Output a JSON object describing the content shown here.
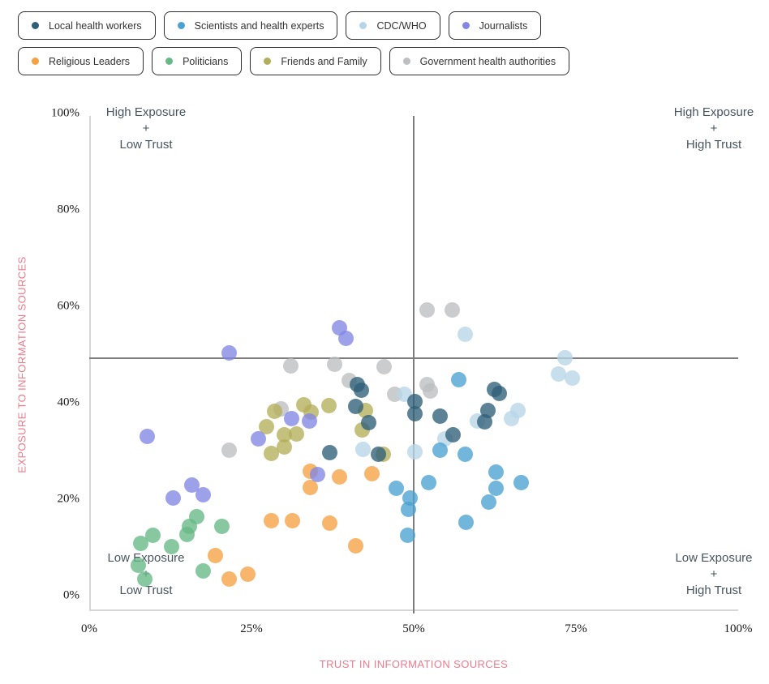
{
  "legend": {
    "rows": [
      [
        {
          "label": "Local health workers",
          "color": "#2e5f78"
        },
        {
          "label": "Scientists and health experts",
          "color": "#4aa2d1"
        },
        {
          "label": "CDC/WHO",
          "color": "#b7d5e8"
        },
        {
          "label": "Journalists",
          "color": "#8287e4"
        }
      ],
      [
        {
          "label": "Religious Leaders",
          "color": "#f5a142"
        },
        {
          "label": "Politicians",
          "color": "#67b886"
        },
        {
          "label": "Friends and Family",
          "color": "#b3ae59"
        },
        {
          "label": "Government health authorities",
          "color": "#bcbec0"
        }
      ]
    ]
  },
  "quadrants": {
    "top_left": {
      "line1": "High Exposure",
      "line2": "+",
      "line3": "Low Trust"
    },
    "top_right": {
      "line1": "High Exposure",
      "line2": "+",
      "line3": "High Trust"
    },
    "bottom_left": {
      "line1": "Low Exposure",
      "line2": "+",
      "line3": "Low Trust"
    },
    "bottom_right": {
      "line1": "Low Exposure",
      "line2": "+",
      "line3": "High Trust"
    }
  },
  "chart_data": {
    "type": "scatter",
    "xlabel": "TRUST IN INFORMATION SOURCES",
    "ylabel": "EXPOSURE TO INFORMATION SOURCES",
    "xlim": [
      0,
      100
    ],
    "ylim": [
      0,
      100
    ],
    "x_ticks": [
      {
        "value": 0,
        "label": "0%"
      },
      {
        "value": 25,
        "label": "25%"
      },
      {
        "value": 50,
        "label": "50%"
      },
      {
        "value": 75,
        "label": "75%"
      },
      {
        "value": 100,
        "label": "100%"
      }
    ],
    "y_ticks": [
      {
        "value": 0,
        "label": "0%"
      },
      {
        "value": 20,
        "label": "20%"
      },
      {
        "value": 40,
        "label": "40%"
      },
      {
        "value": 60,
        "label": "60%"
      },
      {
        "value": 80,
        "label": "80%"
      },
      {
        "value": 100,
        "label": "100%"
      }
    ],
    "grid": false,
    "legend_position": "top-left",
    "reference_lines": {
      "x": 50,
      "y": 49.3
    },
    "series": [
      {
        "name": "Government health authorities",
        "color": "#bcbec0",
        "points": [
          [
            21.5,
            30.2
          ],
          [
            29.5,
            38.8
          ],
          [
            31.0,
            47.7
          ],
          [
            37.8,
            48.0
          ],
          [
            40.1,
            44.7
          ],
          [
            45.4,
            47.4
          ],
          [
            47.1,
            41.7
          ],
          [
            52.1,
            43.8
          ],
          [
            52.6,
            42.4
          ],
          [
            52.1,
            59.2
          ],
          [
            55.9,
            59.2
          ]
        ]
      },
      {
        "name": "Friends and Family",
        "color": "#b3ae59",
        "points": [
          [
            27.3,
            35.0
          ],
          [
            28.1,
            29.5
          ],
          [
            28.6,
            38.3
          ],
          [
            30.0,
            30.8
          ],
          [
            30.0,
            33.4
          ],
          [
            31.9,
            33.5
          ],
          [
            33.0,
            39.5
          ],
          [
            34.2,
            38.0
          ],
          [
            36.9,
            39.4
          ],
          [
            42.1,
            34.3
          ],
          [
            42.5,
            38.4
          ],
          [
            45.3,
            29.3
          ]
        ]
      },
      {
        "name": "Politicians",
        "color": "#67b886",
        "points": [
          [
            7.5,
            6.3
          ],
          [
            7.9,
            10.9
          ],
          [
            8.5,
            3.4
          ],
          [
            9.8,
            12.6
          ],
          [
            12.7,
            10.2
          ],
          [
            15.0,
            12.7
          ],
          [
            15.4,
            14.3
          ],
          [
            16.6,
            16.4
          ],
          [
            17.5,
            5.2
          ],
          [
            20.4,
            14.3
          ]
        ]
      },
      {
        "name": "Religious Leaders",
        "color": "#f5a142",
        "points": [
          [
            19.4,
            8.4
          ],
          [
            21.6,
            3.4
          ],
          [
            24.4,
            4.4
          ],
          [
            28.1,
            15.5
          ],
          [
            31.3,
            15.5
          ],
          [
            34.0,
            22.5
          ],
          [
            34.1,
            25.8
          ],
          [
            37.0,
            15.1
          ],
          [
            38.5,
            24.7
          ],
          [
            41.0,
            10.3
          ],
          [
            43.5,
            25.3
          ]
        ]
      },
      {
        "name": "Journalists",
        "color": "#8287e4",
        "points": [
          [
            8.9,
            33.0
          ],
          [
            12.9,
            20.2
          ],
          [
            15.8,
            23.0
          ],
          [
            17.5,
            21.0
          ],
          [
            21.5,
            50.4
          ],
          [
            26.0,
            32.5
          ],
          [
            31.2,
            36.8
          ],
          [
            33.9,
            36.3
          ],
          [
            35.2,
            25.2
          ],
          [
            38.5,
            55.5
          ],
          [
            39.6,
            53.3
          ]
        ]
      },
      {
        "name": "CDC/WHO",
        "color": "#b7d5e8",
        "points": [
          [
            42.2,
            30.3
          ],
          [
            48.6,
            41.8
          ],
          [
            50.2,
            29.8
          ],
          [
            54.8,
            32.5
          ],
          [
            57.9,
            54.2
          ],
          [
            59.8,
            36.3
          ],
          [
            65.0,
            36.8
          ],
          [
            66.0,
            38.4
          ],
          [
            72.3,
            46.0
          ],
          [
            73.3,
            49.3
          ],
          [
            74.4,
            45.2
          ]
        ]
      },
      {
        "name": "Scientists and health experts",
        "color": "#4aa2d1",
        "points": [
          [
            47.3,
            22.3
          ],
          [
            49.4,
            20.3
          ],
          [
            49.2,
            17.9
          ],
          [
            49.1,
            12.5
          ],
          [
            52.3,
            23.4
          ],
          [
            54.0,
            30.2
          ],
          [
            56.9,
            44.8
          ],
          [
            57.9,
            29.3
          ],
          [
            58.0,
            15.2
          ],
          [
            61.5,
            19.4
          ],
          [
            62.7,
            25.6
          ],
          [
            62.7,
            22.3
          ],
          [
            66.6,
            23.5
          ]
        ]
      },
      {
        "name": "Local health workers",
        "color": "#2e5f78",
        "points": [
          [
            37.1,
            29.7
          ],
          [
            41.3,
            43.8
          ],
          [
            41.9,
            42.6
          ],
          [
            41.0,
            39.3
          ],
          [
            43.1,
            35.9
          ],
          [
            44.6,
            29.3
          ],
          [
            50.2,
            40.3
          ],
          [
            50.2,
            37.8
          ],
          [
            54.1,
            37.3
          ],
          [
            56.0,
            33.4
          ],
          [
            60.9,
            36.1
          ],
          [
            61.4,
            38.4
          ],
          [
            62.4,
            42.7
          ],
          [
            63.2,
            42.0
          ]
        ]
      }
    ]
  }
}
